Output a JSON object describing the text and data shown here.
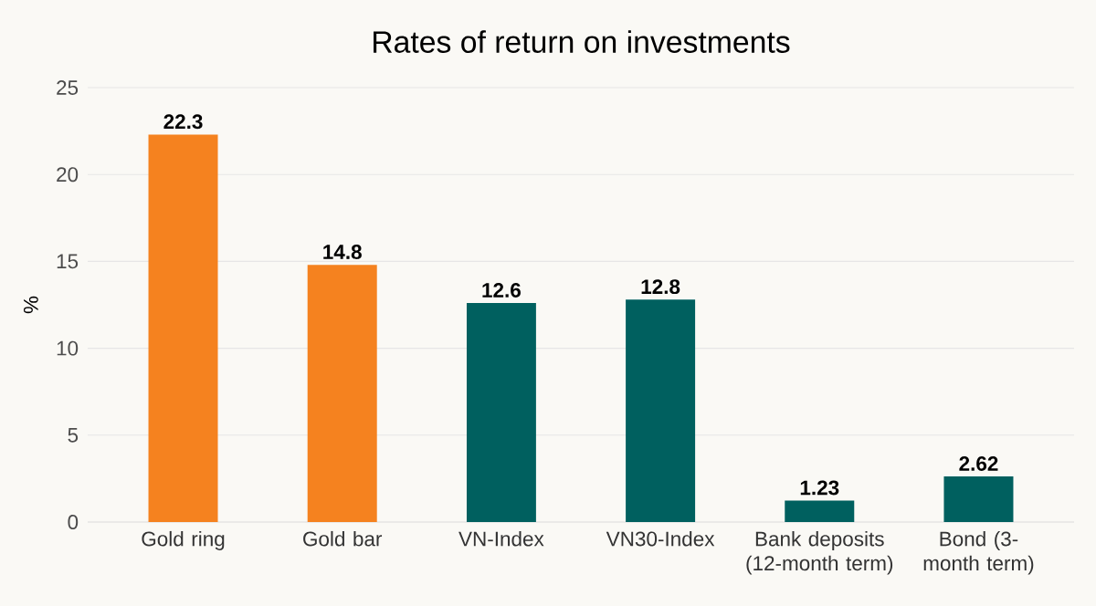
{
  "chart_data": {
    "type": "bar",
    "title": "Rates of return on investments",
    "ylabel": "%",
    "categories": [
      "Gold ring",
      "Gold bar",
      "VN-Index",
      "VN30-Index",
      "Bank deposits (12-month term)",
      "Bond (3-month term)"
    ],
    "values": [
      22.3,
      14.8,
      12.6,
      12.8,
      1.23,
      2.62
    ],
    "colors": [
      "#f5821f",
      "#f5821f",
      "#00605f",
      "#00605f",
      "#00605f",
      "#00605f"
    ],
    "ylim": [
      0,
      25
    ],
    "yticks": [
      0,
      5,
      10,
      15,
      20,
      25
    ],
    "grid": "y",
    "data_labels": true
  }
}
